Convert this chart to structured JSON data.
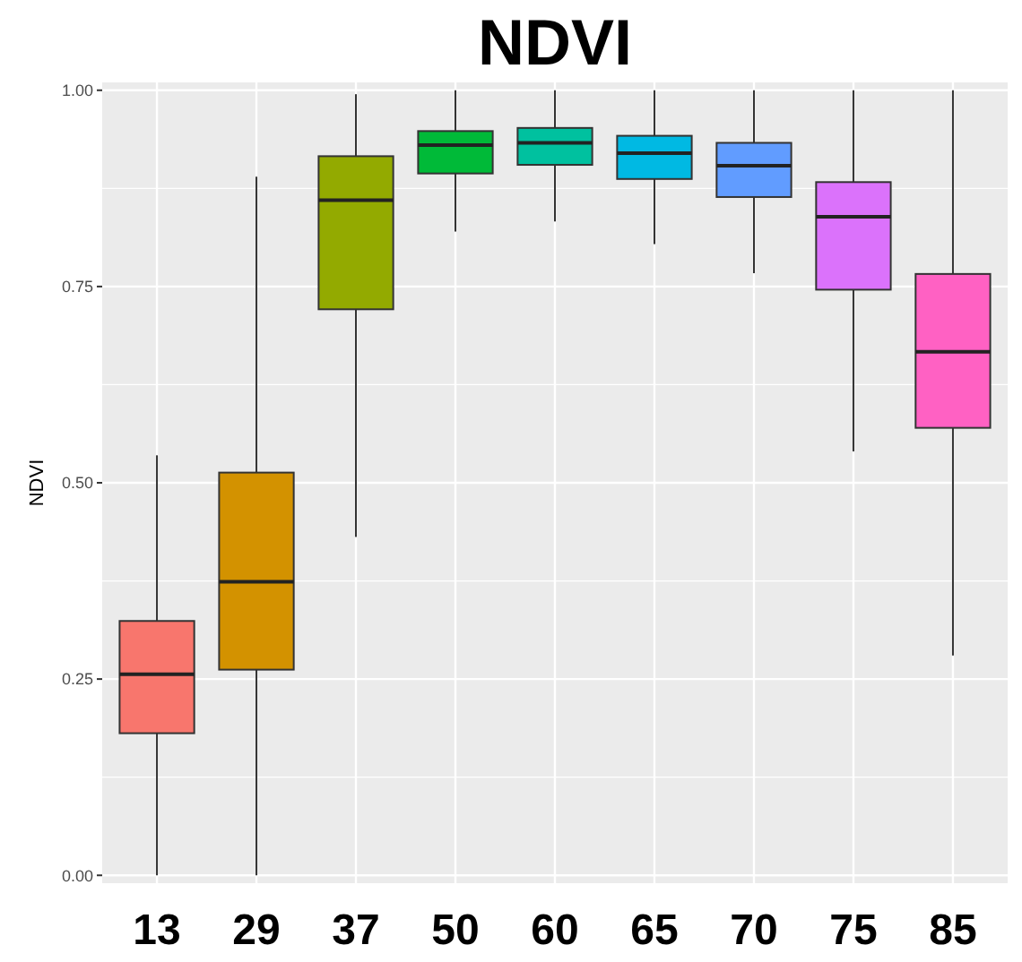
{
  "chart_data": {
    "type": "box",
    "title": "NDVI",
    "ylabel": "NDVI",
    "categories": [
      "13",
      "29",
      "37",
      "50",
      "60",
      "65",
      "70",
      "75",
      "85"
    ],
    "colors": [
      "#f8766d",
      "#d39200",
      "#93aa00",
      "#00ba38",
      "#00c19f",
      "#00b9e3",
      "#619cff",
      "#db72fb",
      "#ff61c3"
    ],
    "boxes": [
      {
        "low": 0.0,
        "q1": 0.181,
        "median": 0.256,
        "q3": 0.324,
        "high": 0.535
      },
      {
        "low": 0.0,
        "q1": 0.262,
        "median": 0.374,
        "q3": 0.513,
        "high": 0.89
      },
      {
        "low": 0.431,
        "q1": 0.721,
        "median": 0.86,
        "q3": 0.916,
        "high": 0.995
      },
      {
        "low": 0.82,
        "q1": 0.894,
        "median": 0.93,
        "q3": 0.948,
        "high": 1.0
      },
      {
        "low": 0.833,
        "q1": 0.905,
        "median": 0.933,
        "q3": 0.952,
        "high": 1.0
      },
      {
        "low": 0.804,
        "q1": 0.887,
        "median": 0.92,
        "q3": 0.942,
        "high": 1.0
      },
      {
        "low": 0.767,
        "q1": 0.864,
        "median": 0.904,
        "q3": 0.933,
        "high": 1.0
      },
      {
        "low": 0.54,
        "q1": 0.746,
        "median": 0.839,
        "q3": 0.883,
        "high": 1.0
      },
      {
        "low": 0.28,
        "q1": 0.57,
        "median": 0.667,
        "q3": 0.766,
        "high": 1.0
      }
    ],
    "ylim": [
      -0.01,
      1.01
    ],
    "yticks": [
      {
        "value": 0,
        "label": "0.00"
      },
      {
        "value": 0.25,
        "label": "0.25"
      },
      {
        "value": 0.5,
        "label": "0.50"
      },
      {
        "value": 0.75,
        "label": "0.75"
      },
      {
        "value": 1,
        "label": "1.00"
      }
    ],
    "grid": true
  }
}
